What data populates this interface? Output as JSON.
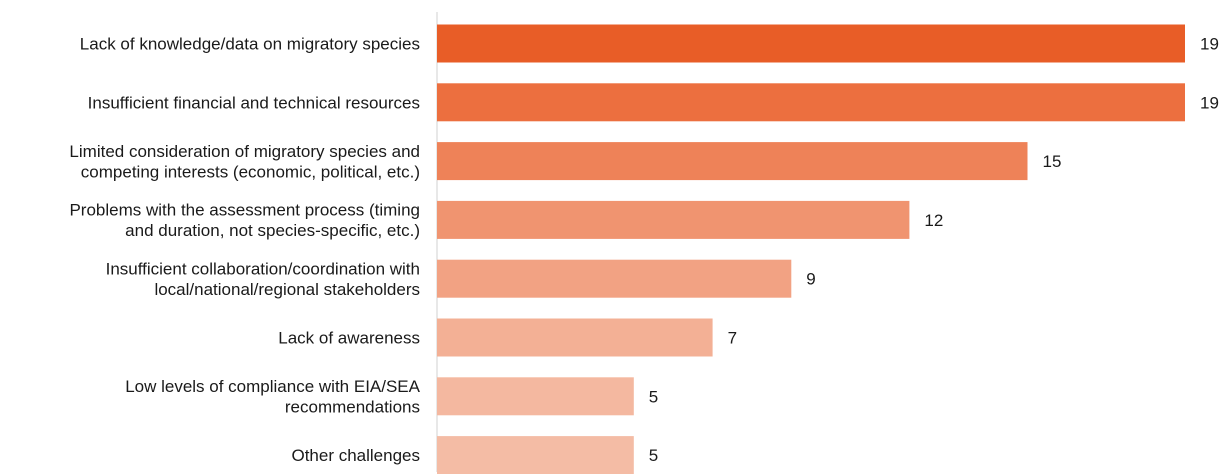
{
  "chart_data": {
    "type": "bar",
    "orientation": "horizontal",
    "title": "",
    "xlabel": "",
    "ylabel": "",
    "categories": [
      [
        "Lack of knowledge/data on migratory species"
      ],
      [
        "Insufficient financial and technical resources"
      ],
      [
        "Limited consideration of migratory species and",
        "competing interests (economic, political, etc.)"
      ],
      [
        "Problems with the assessment process (timing",
        "and duration, not species-specific, etc.)"
      ],
      [
        "Insufficient collaboration/coordination with",
        "local/national/regional stakeholders"
      ],
      [
        "Lack of awareness"
      ],
      [
        "Low levels of compliance with EIA/SEA",
        "recommendations"
      ],
      [
        "Other challenges"
      ]
    ],
    "values": [
      19,
      19,
      15,
      12,
      9,
      7,
      5,
      5
    ],
    "colors": [
      "#e85d27",
      "#ec6f3f",
      "#ee8258",
      "#f09470",
      "#f2a283",
      "#f3b095",
      "#f4b8a0",
      "#f4bca5"
    ],
    "xlim": [
      0,
      19
    ],
    "grid": false,
    "legend": "none",
    "data_labels": true
  }
}
